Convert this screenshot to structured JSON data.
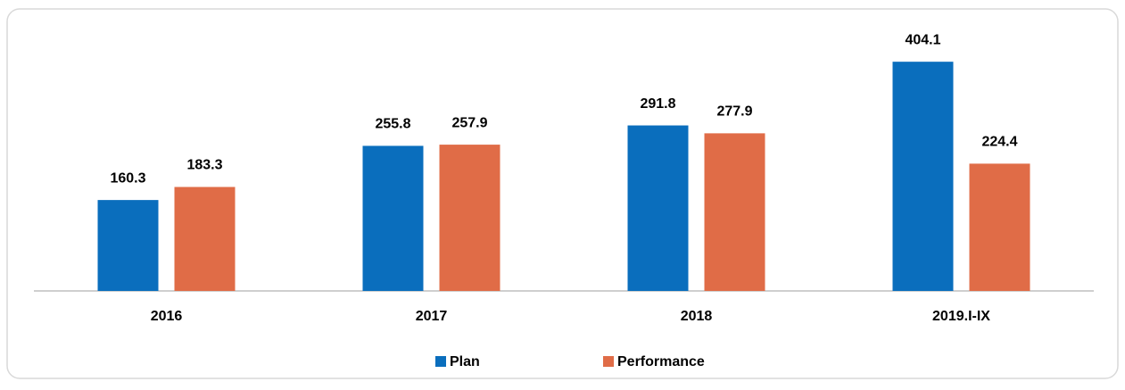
{
  "chart_data": {
    "type": "bar",
    "categories": [
      "2016",
      "2017",
      "2018",
      "2019.I-IX"
    ],
    "series": [
      {
        "name": "Plan",
        "color": "#0a6ebd",
        "values": [
          160.3,
          255.8,
          291.8,
          404.1
        ]
      },
      {
        "name": "Performance",
        "color": "#e06c47",
        "values": [
          183.3,
          257.9,
          277.9,
          224.4
        ]
      }
    ],
    "ylim": [
      0,
      450
    ]
  }
}
